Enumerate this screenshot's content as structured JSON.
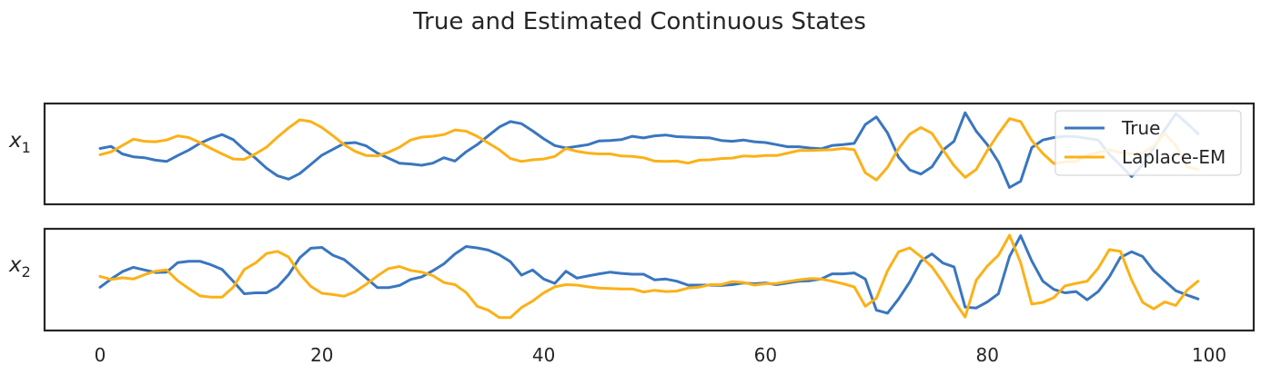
{
  "title": "True and Estimated Continuous States",
  "colors": {
    "true": "#3a76bf",
    "estimate": "#fbb117"
  },
  "chart_data": [
    {
      "type": "line",
      "ylabel_base": "x",
      "ylabel_sub": "1",
      "ylim": [
        -1.3,
        1.1
      ],
      "x": [
        0,
        1,
        2,
        3,
        4,
        5,
        6,
        7,
        8,
        9,
        10,
        11,
        12,
        13,
        14,
        15,
        16,
        17,
        18,
        19,
        20,
        21,
        22,
        23,
        24,
        25,
        26,
        27,
        28,
        29,
        30,
        31,
        32,
        33,
        34,
        35,
        36,
        37,
        38,
        39,
        40,
        41,
        42,
        43,
        44,
        45,
        46,
        47,
        48,
        49,
        50,
        51,
        52,
        53,
        54,
        55,
        56,
        57,
        58,
        59,
        60,
        61,
        62,
        63,
        64,
        65,
        66,
        67,
        68,
        69,
        70,
        71,
        72,
        73,
        74,
        75,
        76,
        77,
        78,
        79,
        80,
        81,
        82,
        83,
        84,
        85,
        86,
        87,
        88,
        89,
        90,
        91,
        92,
        93,
        94,
        95,
        96,
        97,
        98,
        99
      ],
      "series": [
        {
          "name": "True",
          "values": [
            0.03,
            0.08,
            -0.1,
            -0.17,
            -0.19,
            -0.25,
            -0.28,
            -0.14,
            -0.01,
            0.15,
            0.27,
            0.36,
            0.24,
            0.0,
            -0.2,
            -0.44,
            -0.62,
            -0.7,
            -0.57,
            -0.35,
            -0.13,
            0.01,
            0.15,
            0.17,
            0.09,
            -0.08,
            -0.2,
            -0.32,
            -0.34,
            -0.37,
            -0.32,
            -0.19,
            -0.27,
            -0.05,
            0.12,
            0.33,
            0.54,
            0.67,
            0.62,
            0.45,
            0.26,
            0.1,
            0.04,
            0.08,
            0.12,
            0.21,
            0.22,
            0.24,
            0.32,
            0.28,
            0.33,
            0.35,
            0.31,
            0.3,
            0.29,
            0.28,
            0.22,
            0.2,
            0.23,
            0.19,
            0.17,
            0.12,
            0.07,
            0.07,
            0.04,
            0.02,
            0.1,
            0.12,
            0.15,
            0.6,
            0.78,
            0.4,
            -0.18,
            -0.48,
            -0.58,
            -0.41,
            -0.01,
            0.2,
            0.88,
            0.44,
            0.12,
            -0.29,
            -0.9,
            -0.75,
            0.05,
            0.23,
            0.29,
            0.32,
            0.31,
            0.27,
            0.23,
            -0.11,
            -0.37,
            -0.64,
            -0.36,
            0.04,
            0.47,
            0.86,
            0.63,
            0.38
          ]
        },
        {
          "name": "Laplace-EM",
          "values": [
            -0.12,
            -0.05,
            0.1,
            0.25,
            0.2,
            0.19,
            0.23,
            0.33,
            0.29,
            0.17,
            0.03,
            -0.1,
            -0.22,
            -0.23,
            -0.1,
            0.06,
            0.3,
            0.52,
            0.71,
            0.67,
            0.53,
            0.33,
            0.12,
            -0.04,
            -0.14,
            -0.15,
            -0.06,
            0.06,
            0.23,
            0.3,
            0.32,
            0.36,
            0.47,
            0.44,
            0.32,
            0.16,
            0.0,
            -0.21,
            -0.28,
            -0.24,
            -0.22,
            -0.16,
            0.03,
            -0.04,
            -0.08,
            -0.1,
            -0.1,
            -0.15,
            -0.16,
            -0.19,
            -0.27,
            -0.28,
            -0.27,
            -0.32,
            -0.25,
            -0.24,
            -0.21,
            -0.2,
            -0.15,
            -0.16,
            -0.14,
            -0.14,
            -0.08,
            -0.02,
            -0.02,
            -0.01,
            0.0,
            0.03,
            0.0,
            -0.55,
            -0.72,
            -0.42,
            0.03,
            0.37,
            0.53,
            0.39,
            0.0,
            -0.38,
            -0.66,
            -0.47,
            -0.02,
            0.38,
            0.74,
            0.67,
            0.22,
            -0.09,
            -0.33,
            -0.29,
            -0.28,
            -0.13,
            -0.06,
            0.0,
            -0.07,
            -0.1,
            -0.08,
            0.09,
            0.39,
            0.1,
            -0.41,
            -0.47
          ]
        }
      ],
      "legend": {
        "placement": "upper-right",
        "entries": [
          "True",
          "Laplace-EM"
        ]
      }
    },
    {
      "type": "line",
      "ylabel_base": "x",
      "ylabel_sub": "2",
      "ylim": [
        -1.25,
        1.1
      ],
      "x": [
        0,
        1,
        2,
        3,
        4,
        5,
        6,
        7,
        8,
        9,
        10,
        11,
        12,
        13,
        14,
        15,
        16,
        17,
        18,
        19,
        20,
        21,
        22,
        23,
        24,
        25,
        26,
        27,
        28,
        29,
        30,
        31,
        32,
        33,
        34,
        35,
        36,
        37,
        38,
        39,
        40,
        41,
        42,
        43,
        44,
        45,
        46,
        47,
        48,
        49,
        50,
        51,
        52,
        53,
        54,
        55,
        56,
        57,
        58,
        59,
        60,
        61,
        62,
        63,
        64,
        65,
        66,
        67,
        68,
        69,
        70,
        71,
        72,
        73,
        74,
        75,
        76,
        77,
        78,
        79,
        80,
        81,
        82,
        83,
        84,
        85,
        86,
        87,
        88,
        89,
        90,
        91,
        92,
        93,
        94,
        95,
        96,
        97,
        98,
        99
      ],
      "series": [
        {
          "name": "True",
          "values": [
            -0.25,
            -0.06,
            0.11,
            0.21,
            0.15,
            0.09,
            0.1,
            0.32,
            0.35,
            0.35,
            0.27,
            0.16,
            -0.11,
            -0.4,
            -0.38,
            -0.38,
            -0.24,
            0.04,
            0.43,
            0.65,
            0.67,
            0.49,
            0.39,
            0.18,
            -0.04,
            -0.26,
            -0.26,
            -0.21,
            -0.07,
            -0.01,
            0.13,
            0.29,
            0.52,
            0.69,
            0.66,
            0.61,
            0.5,
            0.34,
            0.03,
            0.15,
            -0.06,
            -0.16,
            0.12,
            -0.04,
            0.01,
            0.06,
            0.1,
            0.07,
            0.05,
            0.05,
            -0.08,
            -0.06,
            -0.11,
            -0.2,
            -0.2,
            -0.2,
            -0.21,
            -0.19,
            -0.15,
            -0.17,
            -0.15,
            -0.19,
            -0.15,
            -0.11,
            -0.1,
            -0.06,
            0.06,
            0.06,
            0.08,
            -0.06,
            -0.78,
            -0.85,
            -0.52,
            -0.13,
            0.35,
            0.52,
            0.31,
            0.22,
            -0.71,
            -0.73,
            -0.59,
            -0.4,
            0.46,
            0.94,
            0.36,
            -0.11,
            -0.3,
            -0.38,
            -0.35,
            -0.54,
            -0.35,
            -0.01,
            0.44,
            0.57,
            0.46,
            0.13,
            -0.1,
            -0.33,
            -0.43,
            -0.52
          ]
        },
        {
          "name": "Laplace-EM",
          "values": [
            0.0,
            -0.07,
            -0.03,
            -0.06,
            0.04,
            0.12,
            0.15,
            -0.1,
            -0.28,
            -0.45,
            -0.48,
            -0.48,
            -0.25,
            0.16,
            0.31,
            0.53,
            0.58,
            0.45,
            0.06,
            -0.23,
            -0.39,
            -0.42,
            -0.46,
            -0.35,
            -0.18,
            0.01,
            0.18,
            0.23,
            0.14,
            0.1,
            0.02,
            -0.14,
            -0.19,
            -0.37,
            -0.69,
            -0.78,
            -0.95,
            -0.95,
            -0.72,
            -0.57,
            -0.38,
            -0.24,
            -0.19,
            -0.2,
            -0.24,
            -0.27,
            -0.28,
            -0.29,
            -0.29,
            -0.36,
            -0.32,
            -0.35,
            -0.34,
            -0.27,
            -0.25,
            -0.19,
            -0.19,
            -0.12,
            -0.14,
            -0.2,
            -0.17,
            -0.16,
            -0.12,
            -0.08,
            -0.05,
            -0.06,
            -0.11,
            -0.17,
            -0.24,
            -0.69,
            -0.5,
            0.13,
            0.57,
            0.66,
            0.46,
            0.22,
            -0.14,
            -0.56,
            -0.94,
            -0.09,
            0.24,
            0.49,
            0.95,
            0.32,
            -0.64,
            -0.6,
            -0.49,
            -0.22,
            -0.16,
            -0.11,
            0.19,
            0.62,
            0.58,
            -0.08,
            -0.6,
            -0.75,
            -0.59,
            -0.67,
            -0.32,
            -0.11
          ]
        }
      ],
      "xticks": [
        0,
        20,
        40,
        60,
        80,
        100
      ]
    }
  ]
}
